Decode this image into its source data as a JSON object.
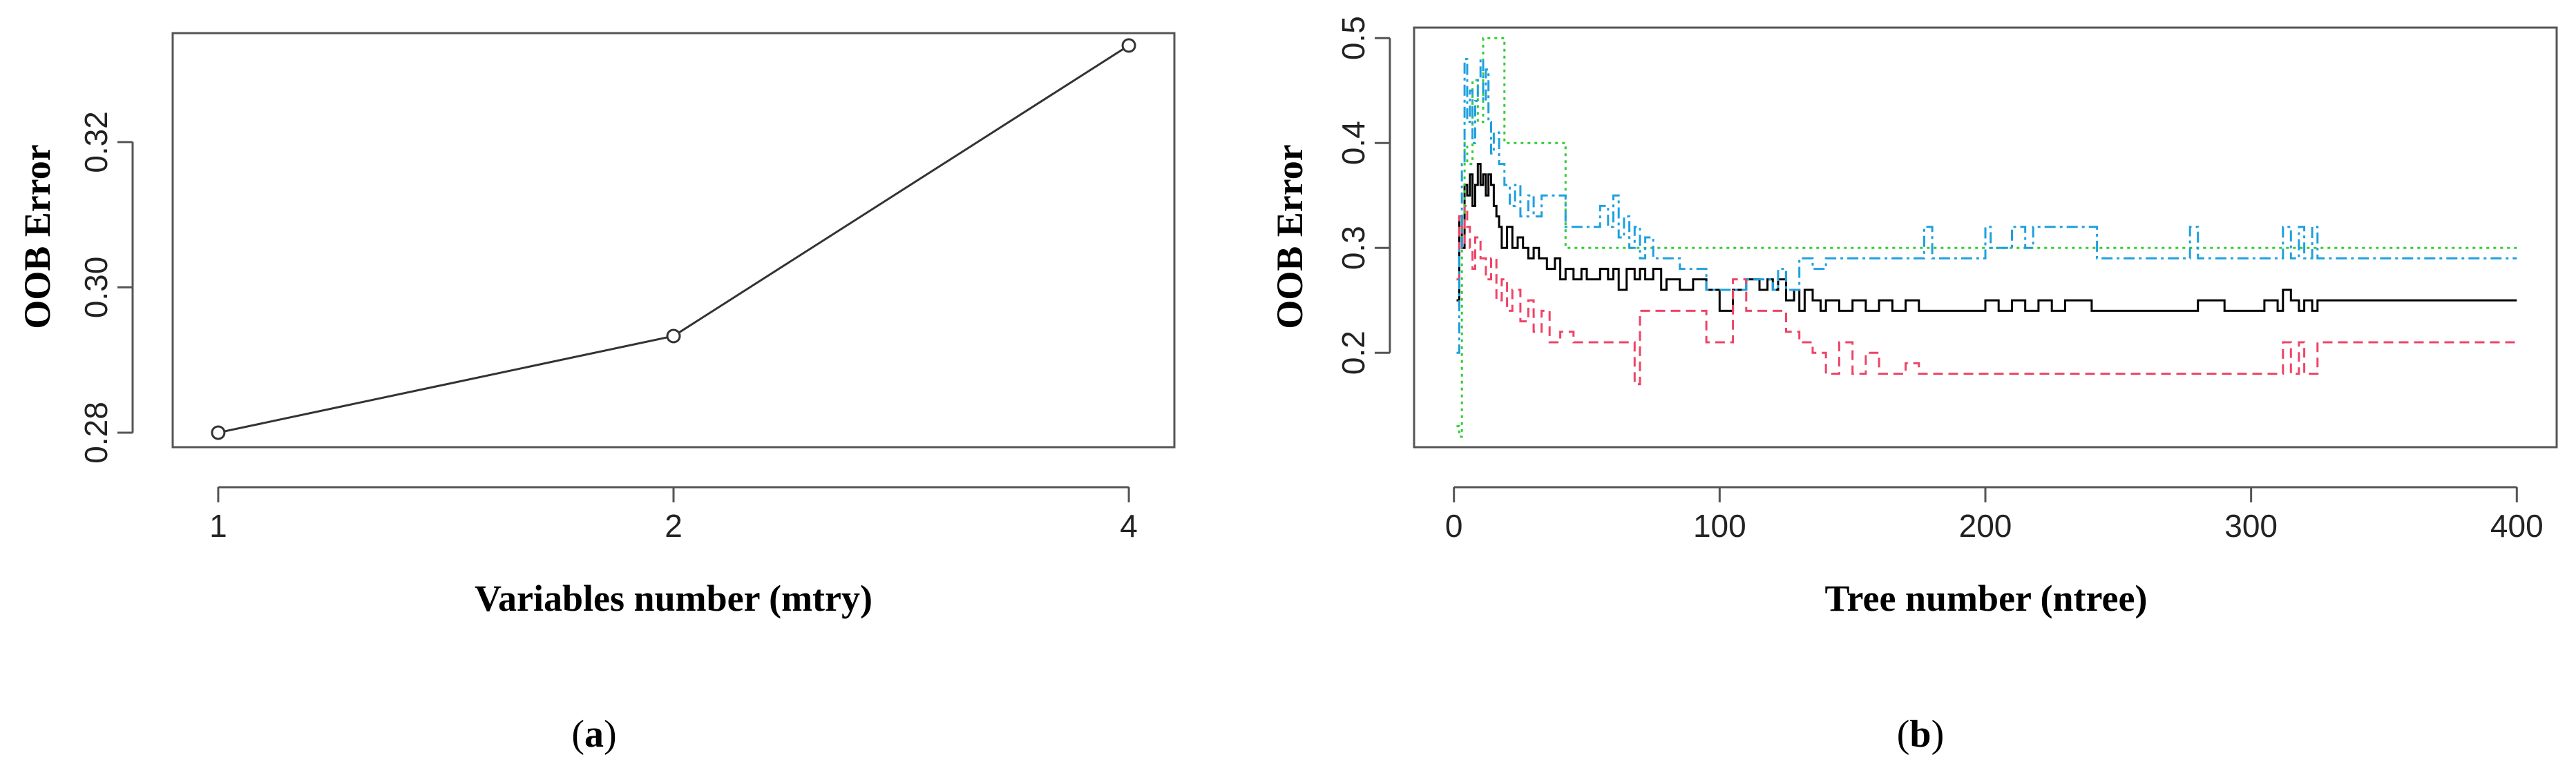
{
  "figure": {
    "panel_a_label": {
      "open": "(",
      "letter": "a",
      "close": ")"
    },
    "panel_b_label": {
      "open": "(",
      "letter": "b",
      "close": ")"
    }
  },
  "chart_data": [
    {
      "type": "line",
      "xlabel": "Variables number  (mtry)",
      "ylabel": "OOB Error",
      "x_ticks": [
        "1",
        "2",
        "4"
      ],
      "y_ticks": [
        "0.28",
        "0.30",
        "0.32"
      ],
      "x_scale": "categorical",
      "xlim": [
        0.9,
        3.1
      ],
      "ylim": [
        0.278,
        0.335
      ],
      "grid": false,
      "markers": "open-circle",
      "categories": [
        "1",
        "2",
        "4"
      ],
      "values": [
        0.28,
        0.2933,
        0.3333
      ],
      "line_color": "#333333"
    },
    {
      "type": "line",
      "xlabel": "Tree number (ntree)",
      "ylabel": "OOB Error",
      "x_ticks": [
        "0",
        "100",
        "200",
        "300",
        "400"
      ],
      "y_ticks": [
        "0.2",
        "0.3",
        "0.4",
        "0.5"
      ],
      "xlim": [
        -15,
        415
      ],
      "ylim": [
        0.11,
        0.51
      ],
      "grid": false,
      "series": [
        {
          "style": "solid",
          "color": "#000000",
          "x": [
            1,
            2,
            3,
            4,
            5,
            6,
            7,
            8,
            9,
            10,
            11,
            12,
            13,
            14,
            15,
            16,
            17,
            18,
            20,
            22,
            24,
            26,
            28,
            30,
            32,
            35,
            38,
            40,
            42,
            45,
            48,
            50,
            55,
            58,
            60,
            62,
            65,
            68,
            70,
            72,
            75,
            78,
            80,
            85,
            90,
            95,
            100,
            105,
            110,
            115,
            118,
            120,
            122,
            125,
            128,
            130,
            132,
            135,
            138,
            140,
            145,
            150,
            155,
            160,
            165,
            170,
            175,
            180,
            190,
            200,
            205,
            210,
            215,
            220,
            225,
            230,
            240,
            250,
            270,
            280,
            290,
            300,
            305,
            310,
            312,
            315,
            318,
            320,
            323,
            325,
            330,
            340,
            350,
            370,
            400
          ],
          "y": [
            0.25,
            0.33,
            0.3,
            0.36,
            0.35,
            0.37,
            0.34,
            0.36,
            0.38,
            0.36,
            0.37,
            0.35,
            0.37,
            0.36,
            0.34,
            0.33,
            0.32,
            0.3,
            0.32,
            0.3,
            0.31,
            0.3,
            0.29,
            0.3,
            0.29,
            0.28,
            0.29,
            0.27,
            0.28,
            0.27,
            0.28,
            0.27,
            0.28,
            0.27,
            0.28,
            0.26,
            0.28,
            0.27,
            0.28,
            0.27,
            0.28,
            0.26,
            0.27,
            0.26,
            0.27,
            0.26,
            0.24,
            0.26,
            0.27,
            0.26,
            0.27,
            0.26,
            0.27,
            0.25,
            0.26,
            0.24,
            0.26,
            0.25,
            0.24,
            0.25,
            0.24,
            0.25,
            0.24,
            0.25,
            0.24,
            0.25,
            0.24,
            0.24,
            0.24,
            0.25,
            0.24,
            0.25,
            0.24,
            0.25,
            0.24,
            0.25,
            0.24,
            0.24,
            0.24,
            0.25,
            0.24,
            0.24,
            0.25,
            0.24,
            0.26,
            0.25,
            0.24,
            0.25,
            0.24,
            0.25,
            0.25,
            0.25,
            0.25,
            0.25,
            0.25
          ]
        },
        {
          "style": "dashed",
          "color": "#ee4466",
          "x": [
            1,
            2,
            3,
            4,
            5,
            6,
            7,
            8,
            10,
            12,
            14,
            16,
            18,
            20,
            22,
            25,
            28,
            30,
            33,
            36,
            40,
            45,
            50,
            55,
            60,
            65,
            68,
            70,
            80,
            90,
            95,
            100,
            105,
            110,
            115,
            120,
            125,
            130,
            135,
            140,
            145,
            150,
            155,
            160,
            170,
            175,
            200,
            250,
            300,
            310,
            312,
            315,
            318,
            320,
            325,
            330,
            360,
            400
          ],
          "y": [
            0.27,
            0.33,
            0.3,
            0.34,
            0.32,
            0.3,
            0.28,
            0.31,
            0.29,
            0.27,
            0.29,
            0.25,
            0.27,
            0.24,
            0.26,
            0.23,
            0.25,
            0.22,
            0.24,
            0.21,
            0.22,
            0.21,
            0.21,
            0.21,
            0.21,
            0.21,
            0.17,
            0.24,
            0.24,
            0.24,
            0.21,
            0.21,
            0.27,
            0.24,
            0.24,
            0.24,
            0.22,
            0.21,
            0.2,
            0.18,
            0.21,
            0.18,
            0.2,
            0.18,
            0.19,
            0.18,
            0.18,
            0.18,
            0.18,
            0.18,
            0.21,
            0.18,
            0.21,
            0.18,
            0.21,
            0.21,
            0.21,
            0.21
          ]
        },
        {
          "style": "dotted",
          "color": "#33cc33",
          "x": [
            1,
            2,
            3,
            4,
            5,
            7,
            9,
            11,
            13,
            15,
            17,
            19,
            21,
            25,
            30,
            35,
            38,
            40,
            42,
            45,
            50,
            60,
            70,
            100,
            150,
            200,
            250,
            300,
            350,
            400
          ],
          "y": [
            0.13,
            0.12,
            0.33,
            0.4,
            0.38,
            0.46,
            0.42,
            0.5,
            0.5,
            0.5,
            0.5,
            0.4,
            0.4,
            0.4,
            0.4,
            0.4,
            0.4,
            0.4,
            0.3,
            0.3,
            0.3,
            0.3,
            0.3,
            0.3,
            0.3,
            0.3,
            0.3,
            0.3,
            0.3,
            0.3
          ]
        },
        {
          "style": "dashdot",
          "color": "#1ea0e0",
          "x": [
            1,
            2,
            3,
            4,
            5,
            6,
            7,
            8,
            9,
            10,
            11,
            12,
            13,
            14,
            15,
            17,
            19,
            21,
            23,
            25,
            28,
            30,
            33,
            36,
            40,
            42,
            45,
            50,
            55,
            58,
            60,
            62,
            64,
            66,
            68,
            70,
            72,
            75,
            80,
            85,
            90,
            95,
            100,
            110,
            120,
            122,
            125,
            130,
            135,
            140,
            150,
            160,
            175,
            177,
            180,
            200,
            202,
            210,
            215,
            218,
            220,
            230,
            240,
            242,
            250,
            260,
            275,
            277,
            280,
            300,
            310,
            312,
            315,
            318,
            320,
            323,
            325,
            330,
            360,
            400
          ],
          "y": [
            0.2,
            0.3,
            0.38,
            0.48,
            0.42,
            0.45,
            0.4,
            0.44,
            0.46,
            0.48,
            0.44,
            0.47,
            0.42,
            0.39,
            0.41,
            0.38,
            0.36,
            0.34,
            0.36,
            0.33,
            0.35,
            0.33,
            0.35,
            0.35,
            0.35,
            0.32,
            0.32,
            0.32,
            0.34,
            0.32,
            0.35,
            0.31,
            0.33,
            0.3,
            0.32,
            0.29,
            0.31,
            0.29,
            0.29,
            0.28,
            0.28,
            0.26,
            0.26,
            0.27,
            0.26,
            0.28,
            0.26,
            0.29,
            0.28,
            0.29,
            0.29,
            0.29,
            0.29,
            0.32,
            0.29,
            0.32,
            0.3,
            0.32,
            0.3,
            0.32,
            0.32,
            0.32,
            0.32,
            0.29,
            0.29,
            0.29,
            0.29,
            0.32,
            0.29,
            0.29,
            0.29,
            0.32,
            0.29,
            0.32,
            0.29,
            0.32,
            0.29,
            0.29,
            0.29,
            0.29
          ]
        }
      ]
    }
  ]
}
